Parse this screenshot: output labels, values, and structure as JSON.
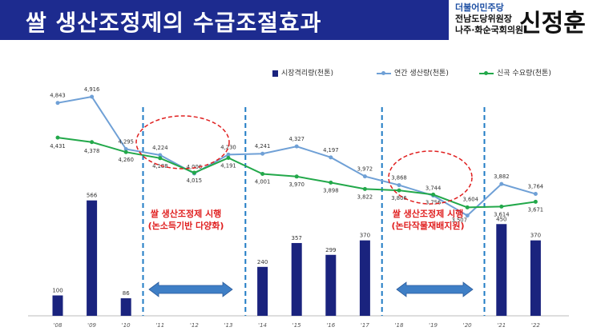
{
  "header": {
    "title": "쌀 생산조정제의 수급조절효과",
    "party_line1": "더불어민주당",
    "party_line2": "전남도당위원장",
    "party_line3": "나주·화순국회의원",
    "person_name": "신정훈"
  },
  "colors": {
    "title_bar": "#1d2b8f",
    "bar": "#1a237e",
    "production_line": "#6fa0d6",
    "demand_line": "#22a84a",
    "divider": "#1f7bc4",
    "highlight": "#e02020",
    "arrow_fill": "#3f7fc6"
  },
  "annotations": {
    "period1_line1": "쌀 생산조정제 시행",
    "period1_line2": "(논소득기반 다양화)",
    "period2_line1": "쌀 생산조정제 시행",
    "period2_line2": "(논타작물재배지원)"
  },
  "chart_data": {
    "type": "bar",
    "categories": [
      "'08",
      "'09",
      "'10",
      "'11",
      "'12",
      "'13",
      "'14",
      "'15",
      "'16",
      "'17",
      "'18",
      "'19",
      "'20",
      "'21",
      "'22"
    ],
    "series": [
      {
        "name": "시장격리량(천톤)",
        "kind": "bar",
        "values": [
          100,
          566,
          86,
          null,
          null,
          null,
          240,
          357,
          299,
          370,
          null,
          null,
          null,
          450,
          370
        ],
        "labels": [
          "100",
          "566",
          "86",
          "",
          "",
          "",
          "240",
          "357",
          "299",
          "370",
          "",
          "",
          "",
          "450",
          "370"
        ]
      },
      {
        "name": "연간 생산량(천톤)",
        "kind": "line",
        "values": [
          4843,
          4916,
          4295,
          4224,
          4006,
          4230,
          4241,
          4327,
          4197,
          3972,
          3868,
          3744,
          3507,
          3882,
          3764
        ],
        "labels": [
          "4,843",
          "4,916",
          "4,295",
          "4,224",
          "4,006",
          "4,230",
          "4,241",
          "4,327",
          "4,197",
          "3,972",
          "3,868",
          "3,744",
          "3,507",
          "3,882",
          "3,764"
        ]
      },
      {
        "name": "신곡 수요량(천톤)",
        "kind": "line",
        "values": [
          4431,
          4378,
          4260,
          4188,
          4015,
          4191,
          4001,
          3970,
          3898,
          3822,
          3806,
          3756,
          3604,
          3614,
          3671
        ],
        "labels": [
          "4,431",
          "4,378",
          "4,260",
          "4,188",
          "4,015",
          "4,191",
          "4,001",
          "3,970",
          "3,898",
          "3,822",
          "3,806",
          "3,756",
          "3,604",
          "3,614",
          "3,671"
        ]
      }
    ],
    "legend_position": "top-right",
    "grid": false
  }
}
